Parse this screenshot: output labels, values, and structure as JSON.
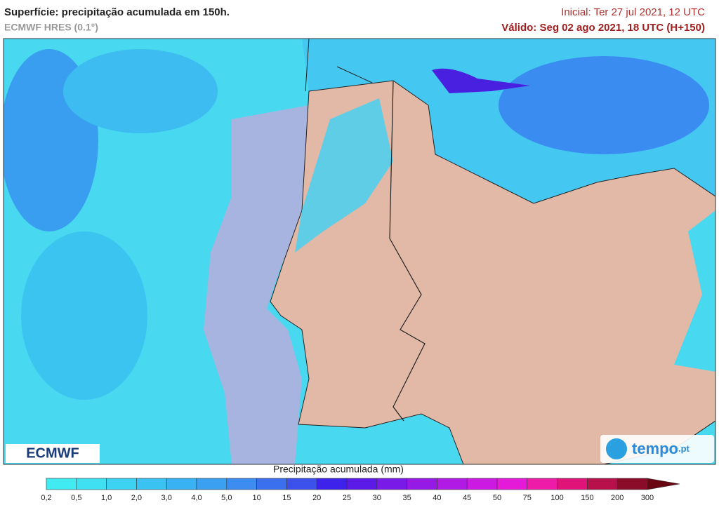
{
  "header": {
    "title": "Superfície: precipitação acumulada em 150h.",
    "model": "ECMWF HRES (0.1°)",
    "initial": "Inicial: Ter 27 jul 2021, 12 UTC",
    "valid": "Válido: Seg 02 ago 2021, 18 UTC (H+150)"
  },
  "logos": {
    "left": "ECMWF",
    "right": "tempo",
    "right_suffix": ".pt"
  },
  "colorbar": {
    "title": "Precipitação acumulada (mm)",
    "labels": [
      "0,2",
      "0,5",
      "1,0",
      "2,0",
      "3,0",
      "4,0",
      "5,0",
      "10",
      "15",
      "20",
      "25",
      "30",
      "35",
      "40",
      "45",
      "50",
      "75",
      "100",
      "150",
      "200",
      "300"
    ],
    "colors": [
      "#40ecf2",
      "#3ee0f2",
      "#3cd2f2",
      "#3ac2f2",
      "#38b2f2",
      "#3aa0f2",
      "#3c8cf2",
      "#3a70ee",
      "#3c50ec",
      "#3c22ea",
      "#5c1ae8",
      "#7a1ae8",
      "#961ae6",
      "#b01ae4",
      "#cc1ae2",
      "#e41ad8",
      "#ee1aa8",
      "#e01478",
      "#b8104a",
      "#8a0c28",
      "#6a0612"
    ]
  }
}
